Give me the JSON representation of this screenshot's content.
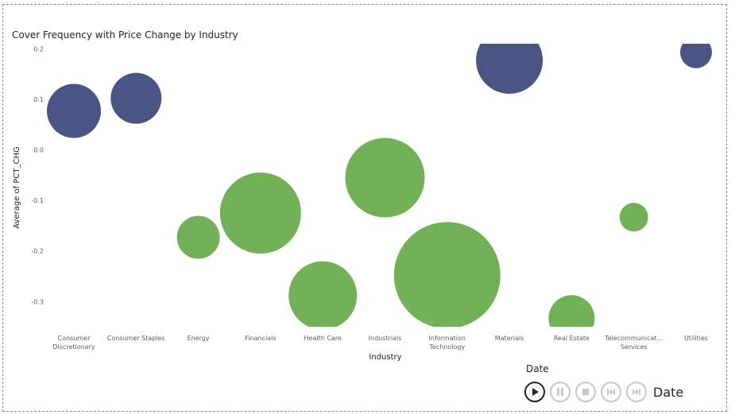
{
  "chart_data": {
    "type": "scatter",
    "title": "Cover Frequency with Price Change by Industry",
    "xlabel": "Industry",
    "ylabel": "Average of PCT_CHG",
    "categories": [
      "Consumer Discretionary",
      "Consumer Staples",
      "Energy",
      "Financials",
      "Health Care",
      "Industrials",
      "Information Technology",
      "Materials",
      "Real Estate",
      "Telecommunicat... Services",
      "Utilities"
    ],
    "category_tick_lines": [
      [
        "Consumer",
        "Discretionary"
      ],
      [
        "Consumer Staples"
      ],
      [
        "Energy"
      ],
      [
        "Financials"
      ],
      [
        "Health Care"
      ],
      [
        "Industrials"
      ],
      [
        "Information",
        "Technology"
      ],
      [
        "Materials"
      ],
      [
        "Real Estate"
      ],
      [
        "Telecommunicat...",
        "Services"
      ],
      [
        "Utilities"
      ]
    ],
    "y_ticks": [
      "0.2",
      "0.1",
      "0.0",
      "-0.1",
      "-0.2",
      "-0.3"
    ],
    "ylim": [
      -0.35,
      0.2
    ],
    "points": [
      {
        "category": "Consumer Discretionary",
        "y": 0.077,
        "size": 34,
        "color": "#4a5583"
      },
      {
        "category": "Consumer Staples",
        "y": 0.102,
        "size": 32,
        "color": "#4a5583"
      },
      {
        "category": "Energy",
        "y": -0.173,
        "size": 27,
        "color": "#72b157"
      },
      {
        "category": "Financials",
        "y": -0.125,
        "size": 51,
        "color": "#72b157"
      },
      {
        "category": "Health Care",
        "y": -0.288,
        "size": 43,
        "color": "#72b157"
      },
      {
        "category": "Industrials",
        "y": -0.055,
        "size": 50,
        "color": "#72b157"
      },
      {
        "category": "Information Technology",
        "y": -0.248,
        "size": 67,
        "color": "#72b157"
      },
      {
        "category": "Materials",
        "y": 0.177,
        "size": 42,
        "color": "#4a5583"
      },
      {
        "category": "Real Estate",
        "y": -0.333,
        "size": 29,
        "color": "#72b157"
      },
      {
        "category": "Telecommunicat... Services",
        "y": -0.133,
        "size": 18,
        "color": "#72b157"
      },
      {
        "category": "Utilities",
        "y": 0.193,
        "size": 20,
        "color": "#4a5583"
      }
    ],
    "grid": false,
    "legend": false
  },
  "play_axis": {
    "label": "Date",
    "current_label": "Date",
    "buttons": [
      "play",
      "pause",
      "stop",
      "previous",
      "next"
    ]
  },
  "colors": {
    "positive": "#4a5583",
    "negative": "#72b157",
    "text": "#252423",
    "tick": "#605e5c"
  }
}
